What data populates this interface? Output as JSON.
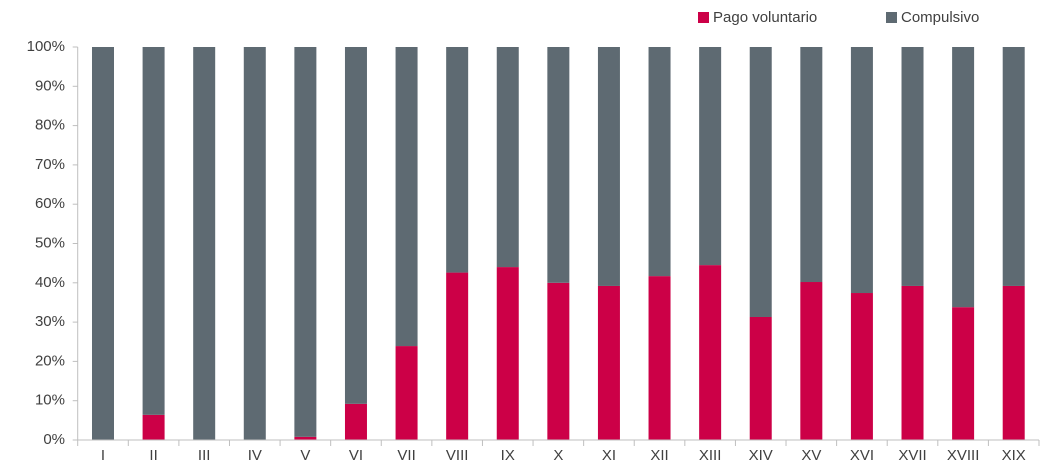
{
  "chart_data": {
    "type": "stacked_bar",
    "categories": [
      "I",
      "II",
      "III",
      "IV",
      "V",
      "VI",
      "VII",
      "VIII",
      "IX",
      "X",
      "XI",
      "XII",
      "XIII",
      "XIV",
      "XV",
      "XVI",
      "XVII",
      "XVIII",
      "XIX"
    ],
    "series": [
      {
        "name": "Pago voluntario",
        "color": "#cc0047",
        "values": [
          0,
          6.4,
          0,
          0,
          0.8,
          9.2,
          23.9,
          42.6,
          44,
          40,
          39.2,
          41.7,
          44.5,
          31.3,
          40.2,
          37.4,
          39.2,
          33.8,
          39.2
        ]
      },
      {
        "name": "Compulsivo",
        "color": "#5e6a72",
        "values": [
          100,
          93.6,
          100,
          100,
          99.2,
          90.8,
          76.1,
          57.4,
          56,
          60,
          60.8,
          58.3,
          55.5,
          68.7,
          59.8,
          62.6,
          60.8,
          66.2,
          60.8
        ]
      }
    ],
    "ylim": [
      0,
      100
    ],
    "yticks": [
      {
        "value": 0,
        "label": "0%"
      },
      {
        "value": 10,
        "label": "10%"
      },
      {
        "value": 20,
        "label": "20%"
      },
      {
        "value": 30,
        "label": "30%"
      },
      {
        "value": 40,
        "label": "40%"
      },
      {
        "value": 50,
        "label": "50%"
      },
      {
        "value": 60,
        "label": "60%"
      },
      {
        "value": 70,
        "label": "70%"
      },
      {
        "value": 80,
        "label": "80%"
      },
      {
        "value": 90,
        "label": "90%"
      },
      {
        "value": 100,
        "label": "100%"
      }
    ],
    "grid": false,
    "legend": "top-right"
  }
}
